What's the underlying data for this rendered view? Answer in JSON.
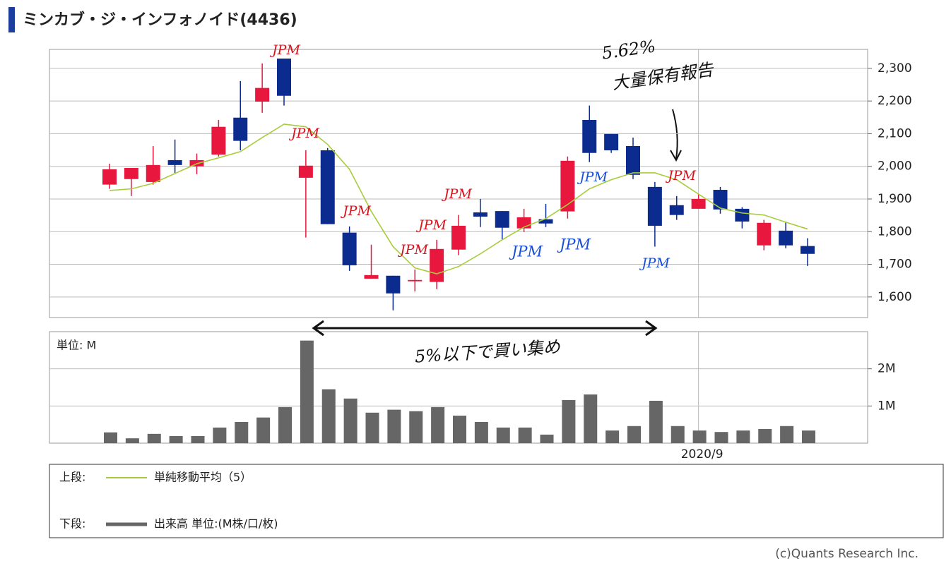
{
  "header": {
    "title": "ミンカブ・ジ・インフォノイド(4436)"
  },
  "chart_data": [
    {
      "type": "candlestick",
      "open": [
        1944,
        1961,
        1952,
        2019,
        2000,
        2036,
        2149,
        2198,
        2330,
        1965,
        2049,
        1797,
        1656,
        1665,
        1648,
        1646,
        1745,
        1859,
        1863,
        1810,
        1838,
        1862,
        2142,
        2099,
        2062,
        1937,
        1881,
        1870,
        1928,
        1870,
        1758,
        1803,
        1756
      ],
      "high": [
        2008,
        1995,
        2062,
        2082,
        2039,
        2142,
        2261,
        2315,
        2330,
        2049,
        2056,
        1816,
        1760,
        1665,
        1684,
        1775,
        1851,
        1900,
        1863,
        1870,
        1885,
        2030,
        2186,
        2099,
        2088,
        1952,
        1909,
        1915,
        1937,
        1875,
        1836,
        1831,
        1780
      ],
      "low": [
        1931,
        1909,
        1944,
        1980,
        1976,
        2030,
        2049,
        2164,
        2186,
        1782,
        1823,
        1680,
        1656,
        1559,
        1617,
        1624,
        1728,
        1814,
        1775,
        1799,
        1814,
        1840,
        2013,
        2041,
        1961,
        1754,
        1836,
        1870,
        1855,
        1810,
        1743,
        1749,
        1695
      ],
      "close": [
        1991,
        1995,
        2004,
        2004,
        2019,
        2121,
        2078,
        2240,
        2216,
        2002,
        1823,
        1697,
        1667,
        1611,
        1652,
        1747,
        1818,
        1846,
        1812,
        1844,
        1825,
        2017,
        2041,
        2049,
        1974,
        1818,
        1851,
        1900,
        1868,
        1831,
        1827,
        1758,
        1732
      ],
      "up_color": "#e8173d",
      "down_color": "#0b2b8f",
      "series": [
        {
          "name": "単純移動平均（5）",
          "color": "#a8cc3c",
          "values": [
            1926,
            1931,
            1948,
            1978,
            2008,
            2026,
            2045,
            2088,
            2129,
            2121,
            2067,
            1991,
            1862,
            1754,
            1689,
            1671,
            1693,
            1732,
            1775,
            1814,
            1840,
            1883,
            1931,
            1959,
            1980,
            1980,
            1959,
            1915,
            1872,
            1857,
            1851,
            1829,
            1808
          ]
        }
      ],
      "panel_label": "上段:",
      "ylim": [
        1537,
        2358
      ],
      "yticks": [
        {
          "value": 1600,
          "label": "1,600"
        },
        {
          "value": 1700,
          "label": "1,700"
        },
        {
          "value": 1800,
          "label": "1,800"
        },
        {
          "value": 1900,
          "label": "1,900"
        },
        {
          "value": 2000,
          "label": "2,000"
        },
        {
          "value": 2100,
          "label": "2,100"
        },
        {
          "value": 2200,
          "label": "2,200"
        },
        {
          "value": 2300,
          "label": "2,300"
        }
      ],
      "grid": true
    },
    {
      "type": "bar",
      "categories": [
        null,
        null,
        null,
        null,
        null,
        null,
        null,
        null,
        null,
        null,
        null,
        null,
        null,
        null,
        null,
        null,
        null,
        null,
        null,
        null,
        null,
        null,
        null,
        null,
        null,
        null,
        null,
        "2020/9",
        null,
        null,
        null,
        null,
        null
      ],
      "series": [
        {
          "name": "出来高 単位:(M株/口/枚)",
          "color": "#666666",
          "values": [
            0.29,
            0.13,
            0.25,
            0.19,
            0.19,
            0.42,
            0.57,
            0.69,
            0.97,
            2.76,
            1.45,
            1.2,
            0.82,
            0.9,
            0.86,
            0.97,
            0.74,
            0.57,
            0.42,
            0.42,
            0.23,
            1.16,
            1.31,
            0.34,
            0.46,
            1.14,
            0.46,
            0.34,
            0.3,
            0.34,
            0.38,
            0.46,
            0.34
          ]
        }
      ],
      "panel_label": "下段:",
      "unit_label": "単位: M",
      "ylim": [
        0,
        3
      ],
      "yticks": [
        {
          "value": 1,
          "label": "1M"
        },
        {
          "value": 2,
          "label": "2M"
        }
      ],
      "grid": true
    }
  ],
  "annotations": [
    {
      "text": "JPM",
      "color": "#d8141e"
    },
    {
      "text": "JPM",
      "color": "#d8141e"
    },
    {
      "text": "JPM",
      "color": "#d8141e"
    },
    {
      "text": "JPM",
      "color": "#d8141e"
    },
    {
      "text": "JPM",
      "color": "#d8141e"
    },
    {
      "text": "JPM",
      "color": "#d8141e"
    },
    {
      "text": "JPM",
      "color": "#1a4fd6"
    },
    {
      "text": "JPM",
      "color": "#1a4fd6"
    },
    {
      "text": "JPM",
      "color": "#1a4fd6"
    },
    {
      "text": "JPM",
      "color": "#1a4fd6"
    },
    {
      "text": "JPM",
      "color": "#d8141e"
    },
    {
      "text": "5.62%",
      "color": "#111111"
    },
    {
      "text": "大量保有報告",
      "color": "#111111"
    },
    {
      "text": "5%以下で買い集め",
      "color": "#111111"
    }
  ],
  "footer": {
    "credit": "(c)Quants Research Inc."
  }
}
